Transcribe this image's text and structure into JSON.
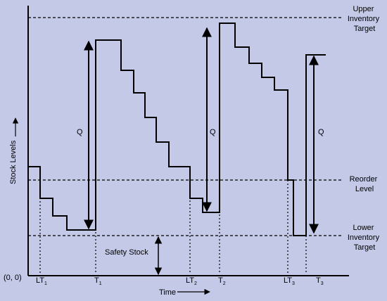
{
  "axes": {
    "y_label": "Stock Levels",
    "x_label": "Time",
    "origin": "(0, 0)"
  },
  "lines": {
    "upper_target": [
      "Upper",
      "Inventory",
      "Target"
    ],
    "reorder_level": [
      "Reorder",
      "Level"
    ],
    "lower_target": [
      "Lower",
      "Inventory",
      "Target"
    ]
  },
  "annotations": {
    "q_label": "Q",
    "safety_stock": "Safety Stock"
  },
  "ticks": [
    {
      "main": "LT",
      "sub": "1"
    },
    {
      "main": "T",
      "sub": "1"
    },
    {
      "main": "LT",
      "sub": "2"
    },
    {
      "main": "T",
      "sub": "2"
    },
    {
      "main": "LT",
      "sub": "3"
    },
    {
      "main": "T",
      "sub": "3"
    }
  ],
  "colors": {
    "background": "#c3c9e7",
    "ink": "#000000"
  }
}
